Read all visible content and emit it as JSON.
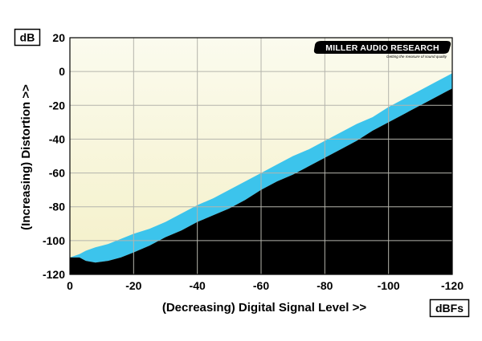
{
  "chart_data": {
    "type": "area",
    "ylabel": "(Increasing) Distortion >>",
    "xlabel": "(Decreasing) Digital Signal Level >>",
    "y_unit": "dB",
    "x_unit": "dBFs",
    "xlim": [
      0,
      -120
    ],
    "ylim": [
      -120,
      20
    ],
    "x_ticks": [
      "0",
      "-20",
      "-40",
      "-60",
      "-80",
      "-100",
      "-120"
    ],
    "y_ticks": [
      "20",
      "0",
      "-20",
      "-40",
      "-60",
      "-80",
      "-100",
      "-120"
    ],
    "grid": true,
    "colors": {
      "background_top": "#fbfbee",
      "background_bottom": "#f4f0c8",
      "band": "#3cc4ec",
      "floor": "#000000",
      "grid": "#b4b4ac"
    },
    "series": [
      {
        "x": [
          0,
          -3,
          -5,
          -8,
          -12,
          -16,
          -20,
          -25,
          -30,
          -35,
          -40,
          -45,
          -50,
          -55,
          -60,
          -65,
          -70,
          -75,
          -80,
          -85,
          -90,
          -95,
          -100,
          -105,
          -110,
          -115,
          -118,
          -120
        ],
        "lower": [
          -110,
          -110,
          -112,
          -113,
          -112,
          -110,
          -107,
          -103,
          -98,
          -94,
          -89,
          -85,
          -81,
          -76,
          -70,
          -65,
          -61,
          -56,
          -51,
          -46,
          -41,
          -35,
          -30,
          -25,
          -20,
          -15,
          -12,
          -10
        ],
        "upper": [
          -110,
          -108,
          -106,
          -104,
          -102,
          -99,
          -96,
          -93,
          -89,
          -84,
          -79,
          -75,
          -70,
          -65,
          -60,
          -55,
          -50,
          -46,
          -41,
          -36,
          -31,
          -27,
          -21,
          -16,
          -11,
          -6,
          -3,
          -1
        ]
      }
    ]
  },
  "logo": {
    "brand": "MILLER AUDIO RESEARCH",
    "tagline": "Getting the measure of sound quality"
  }
}
